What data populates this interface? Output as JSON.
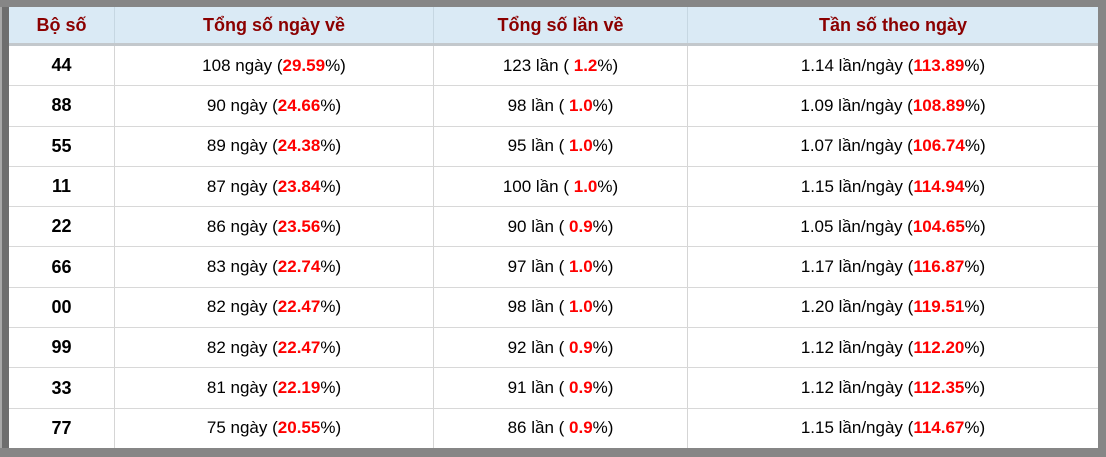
{
  "table": {
    "headers": [
      "Bộ số",
      "Tổng số ngày về",
      "Tổng số lần về",
      "Tần số theo ngày"
    ],
    "columns": [
      {
        "name": "cell-pair-number",
        "class": "c1",
        "segments": [
          {
            "field": "number",
            "style": "num"
          }
        ]
      },
      {
        "name": "cell-total-days",
        "class": "c2",
        "segments": [
          {
            "field": "days"
          },
          {
            "text": " ngày ("
          },
          {
            "field": "days_pct",
            "style": "red"
          },
          {
            "text": "%)"
          }
        ]
      },
      {
        "name": "cell-total-times",
        "class": "c3",
        "segments": [
          {
            "field": "times"
          },
          {
            "text": " lần ( "
          },
          {
            "field": "times_pct",
            "style": "red"
          },
          {
            "text": "%)"
          }
        ]
      },
      {
        "name": "cell-frequency-per-day",
        "class": "c4",
        "segments": [
          {
            "field": "freq"
          },
          {
            "text": " lần/ngày ("
          },
          {
            "field": "freq_pct",
            "style": "red"
          },
          {
            "text": "%)"
          }
        ]
      }
    ],
    "rows": [
      {
        "number": "44",
        "days": "108",
        "days_pct": "29.59",
        "times": "123",
        "times_pct": "1.2",
        "freq": "1.14",
        "freq_pct": "113.89"
      },
      {
        "number": "88",
        "days": "90",
        "days_pct": "24.66",
        "times": "98",
        "times_pct": "1.0",
        "freq": "1.09",
        "freq_pct": "108.89"
      },
      {
        "number": "55",
        "days": "89",
        "days_pct": "24.38",
        "times": "95",
        "times_pct": "1.0",
        "freq": "1.07",
        "freq_pct": "106.74"
      },
      {
        "number": "11",
        "days": "87",
        "days_pct": "23.84",
        "times": "100",
        "times_pct": "1.0",
        "freq": "1.15",
        "freq_pct": "114.94"
      },
      {
        "number": "22",
        "days": "86",
        "days_pct": "23.56",
        "times": "90",
        "times_pct": "0.9",
        "freq": "1.05",
        "freq_pct": "104.65"
      },
      {
        "number": "66",
        "days": "83",
        "days_pct": "22.74",
        "times": "97",
        "times_pct": "1.0",
        "freq": "1.17",
        "freq_pct": "116.87"
      },
      {
        "number": "00",
        "days": "82",
        "days_pct": "22.47",
        "times": "98",
        "times_pct": "1.0",
        "freq": "1.20",
        "freq_pct": "119.51"
      },
      {
        "number": "99",
        "days": "82",
        "days_pct": "22.47",
        "times": "92",
        "times_pct": "0.9",
        "freq": "1.12",
        "freq_pct": "112.20"
      },
      {
        "number": "33",
        "days": "81",
        "days_pct": "22.19",
        "times": "91",
        "times_pct": "0.9",
        "freq": "1.12",
        "freq_pct": "112.35"
      },
      {
        "number": "77",
        "days": "75",
        "days_pct": "20.55",
        "times": "86",
        "times_pct": "0.9",
        "freq": "1.15",
        "freq_pct": "114.67"
      }
    ]
  },
  "colors": {
    "header_text": "#8b0000",
    "highlight_red": "#ff0000",
    "header_bg": "#daeaf5",
    "frame_gray": "#868686",
    "row_divider": "#d8d8d8"
  }
}
